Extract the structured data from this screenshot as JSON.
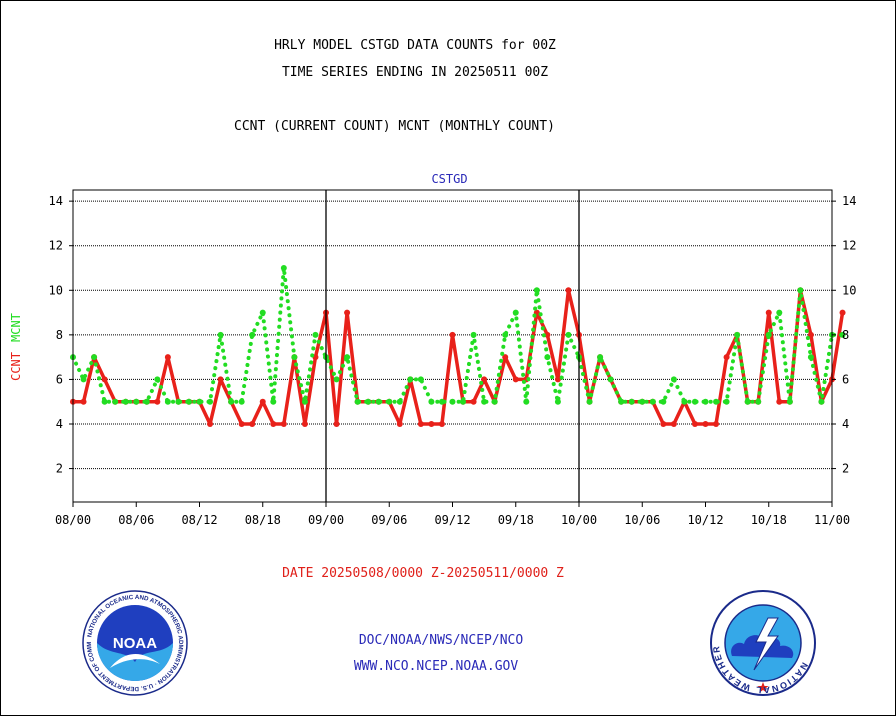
{
  "header": {
    "title_line1": "HRLY MODEL CSTGD DATA COUNTS for 00Z",
    "title_line2": "TIME SERIES ENDING IN 20250511 00Z",
    "subtitle": "CCNT (CURRENT COUNT) MCNT (MONTHLY COUNT)"
  },
  "footer": {
    "date_range": "DATE 20250508/0000 Z-20250511/0000 Z",
    "org": "DOC/NOAA/NWS/NCEP/NCO",
    "url": "WWW.NCO.NCEP.NOAA.GOV"
  },
  "logos": {
    "noaa_text": "NOAA",
    "nws_text": "NATIONAL WEATHER SERVICE",
    "noaa_ring_text": "NATIONAL OCEANIC AND ATMOSPHERIC ADMINISTRATION · U.S. DEPARTMENT OF COMMERCE"
  },
  "colors": {
    "ccnt": "#e8211a",
    "mcnt": "#22dd22",
    "title_blue": "#2a2ab8",
    "date_red": "#e0201a"
  },
  "chart_data": {
    "type": "line",
    "title": "CSTGD",
    "ylabel_left": "CCNT",
    "ylabel_right": "MCNT",
    "x_ticks": [
      "08/00",
      "08/06",
      "08/12",
      "08/18",
      "09/00",
      "09/06",
      "09/12",
      "09/18",
      "10/00",
      "10/06",
      "10/12",
      "10/18",
      "11/00"
    ],
    "y_ticks": [
      2,
      4,
      6,
      8,
      10,
      12,
      14
    ],
    "ylim": [
      0.5,
      14.5
    ],
    "x_hours_range": [
      0,
      72
    ],
    "grid": true,
    "series": [
      {
        "name": "CCNT",
        "style": "solid",
        "values": [
          5,
          5,
          7,
          6,
          5,
          5,
          5,
          5,
          5,
          7,
          5,
          5,
          5,
          4,
          6,
          5,
          4,
          4,
          5,
          4,
          4,
          7,
          4,
          7,
          9,
          4,
          9,
          5,
          5,
          5,
          5,
          4,
          6,
          4,
          4,
          4,
          8,
          5,
          5,
          6,
          5,
          7,
          6,
          6,
          9,
          8,
          6,
          10,
          8,
          5,
          7,
          6,
          5,
          5,
          5,
          5,
          4,
          4,
          5,
          4,
          4,
          4,
          7,
          8,
          5,
          5,
          9,
          5,
          5,
          10,
          8,
          5,
          6,
          9
        ]
      },
      {
        "name": "MCNT",
        "style": "dotted",
        "values": [
          7,
          6,
          7,
          5,
          5,
          5,
          5,
          5,
          6,
          5,
          5,
          5,
          5,
          5,
          8,
          5,
          5,
          8,
          9,
          5,
          11,
          7,
          5,
          8,
          7,
          6,
          7,
          5,
          5,
          5,
          5,
          5,
          6,
          6,
          5,
          5,
          5,
          5,
          8,
          5,
          5,
          8,
          9,
          5,
          10,
          7,
          5,
          8,
          7,
          5,
          7,
          6,
          5,
          5,
          5,
          5,
          5,
          6,
          5,
          5,
          5,
          5,
          5,
          8,
          5,
          5,
          8,
          9,
          5,
          10,
          7,
          5,
          8,
          8
        ]
      }
    ]
  }
}
